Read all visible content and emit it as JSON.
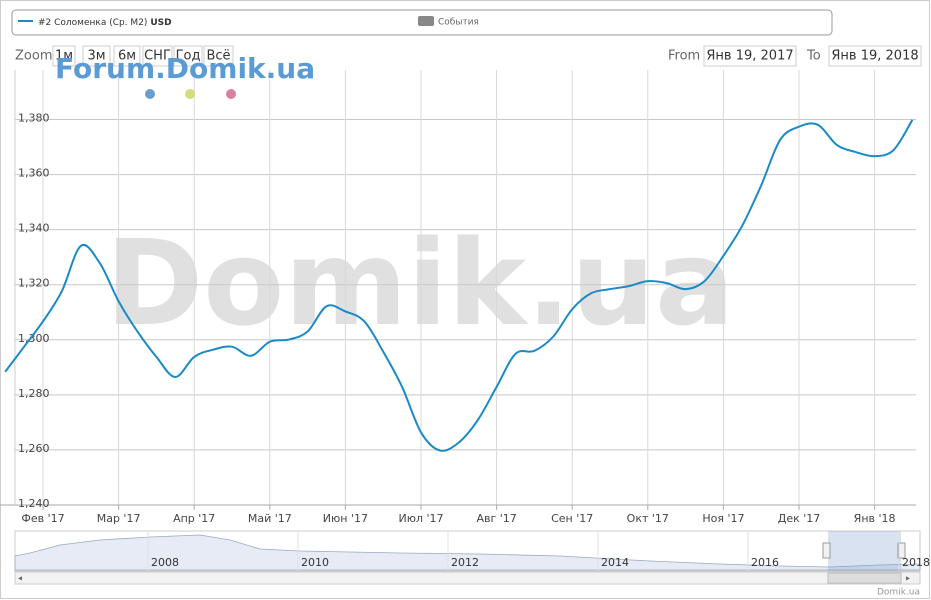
{
  "chart_data": {
    "type": "line",
    "series": [
      {
        "name": "#2 Соломенка (Ср. М2)",
        "unit": "USD",
        "color": "#1a8ac6",
        "values": [
          1288.4,
          1297.5,
          1306.7,
          1317.7,
          1334.1,
          1327.9,
          1314,
          1303,
          1293.8,
          1286.5,
          1293.8,
          1296.4,
          1297.5,
          1294.2,
          1299.3,
          1300.1,
          1303,
          1312.2,
          1310.3,
          1306.7,
          1295.7,
          1282.9,
          1266.4,
          1259.8,
          1262.7,
          1270.8,
          1282.9,
          1294.9,
          1296,
          1301.2,
          1311.1,
          1316.9,
          1318.4,
          1319.5,
          1321.3,
          1320.6,
          1318.4,
          1321.3,
          1330.5,
          1341.5,
          1356.1,
          1372.6,
          1377.4,
          1378.1,
          1370.8,
          1368.2,
          1366.7,
          1368.9,
          1379.9
        ]
      }
    ],
    "categories": [
      null,
      null,
      "Фев '17",
      null,
      null,
      null,
      "Мар '17",
      null,
      null,
      null,
      "Апр '17",
      null,
      null,
      null,
      "Май '17",
      null,
      null,
      null,
      "Июн '17",
      null,
      null,
      null,
      "Июл '17",
      null,
      null,
      null,
      "Авг '17",
      null,
      null,
      null,
      "Сен '17",
      null,
      null,
      null,
      "Окт '17",
      null,
      null,
      null,
      "Ноя '17",
      null,
      null,
      null,
      "Дек '17",
      null,
      null,
      null,
      "Янв '18",
      null,
      null
    ],
    "ylim": [
      1240,
      1398
    ],
    "yticks": [
      {
        "value": 1240,
        "label": "1,240"
      },
      {
        "value": 1260,
        "label": "1,260"
      },
      {
        "value": 1280,
        "label": "1,280"
      },
      {
        "value": 1300,
        "label": "1,300"
      },
      {
        "value": 1320,
        "label": "1,320"
      },
      {
        "value": 1340,
        "label": "1,340"
      },
      {
        "value": 1360,
        "label": "1,360"
      },
      {
        "value": 1380,
        "label": "1,380"
      }
    ],
    "grid": true,
    "events_legend": {
      "name": "События",
      "color": "#888888"
    },
    "range_selector": {
      "label": "Zoom",
      "buttons": [
        "1м",
        "3м",
        "6м",
        "СНГ",
        "Год",
        "Всё"
      ],
      "from_label": "From",
      "from": "Янв 19, 2017",
      "to_label": "To",
      "to": "Янв 19, 2018"
    },
    "watermark": "Domik.ua",
    "forum_logo": "Forum.Domik.ua",
    "credits": "Domik.ua",
    "navigator": {
      "labels": [
        "2008",
        "2010",
        "2012",
        "2014",
        "2016",
        "2018"
      ]
    }
  }
}
